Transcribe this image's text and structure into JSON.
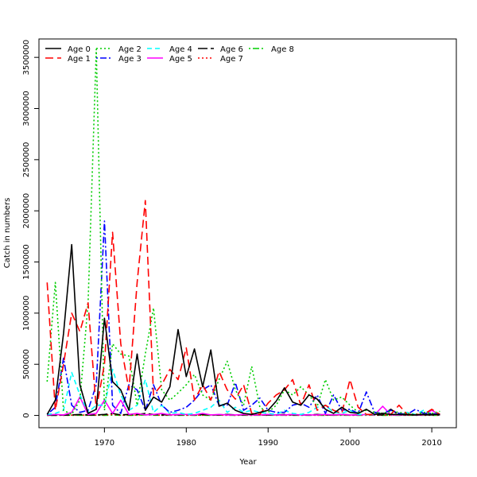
{
  "chart_data": {
    "type": "line",
    "title": "",
    "xlabel": "Year",
    "ylabel": "Catch in numbers",
    "xlim": [
      1962,
      2013
    ],
    "ylim": [
      -120000,
      3680000
    ],
    "x_ticks": [
      1970,
      1980,
      1990,
      2000,
      2010
    ],
    "y_ticks": [
      0,
      500000,
      1000000,
      1500000,
      2000000,
      2500000,
      3000000,
      3500000
    ],
    "grid": false,
    "legend_position": "top-left",
    "x": [
      1963,
      1964,
      1965,
      1966,
      1967,
      1968,
      1969,
      1970,
      1971,
      1972,
      1973,
      1974,
      1975,
      1976,
      1977,
      1978,
      1979,
      1980,
      1981,
      1982,
      1983,
      1984,
      1985,
      1986,
      1987,
      1988,
      1989,
      1990,
      1991,
      1992,
      1993,
      1994,
      1995,
      1996,
      1997,
      1998,
      1999,
      2000,
      2001,
      2002,
      2003,
      2004,
      2005,
      2006,
      2007,
      2008,
      2009,
      2010,
      2011
    ],
    "series": [
      {
        "name": "Age 0",
        "color": "#000000",
        "dash": "solid",
        "values": [
          10000,
          150000,
          800000,
          1670000,
          300000,
          20000,
          60000,
          950000,
          330000,
          250000,
          50000,
          600000,
          50000,
          180000,
          130000,
          280000,
          840000,
          380000,
          650000,
          280000,
          640000,
          90000,
          120000,
          50000,
          20000,
          10000,
          30000,
          50000,
          140000,
          270000,
          130000,
          100000,
          200000,
          160000,
          60000,
          20000,
          80000,
          30000,
          20000,
          60000,
          10000,
          20000,
          10000,
          10000,
          10000,
          5000,
          10000,
          10000,
          10000
        ]
      },
      {
        "name": "Age 1",
        "color": "#ff0000",
        "dash": "long",
        "values": [
          1300000,
          50000,
          500000,
          1000000,
          820000,
          1100000,
          60000,
          500000,
          1790000,
          700000,
          250000,
          1300000,
          2100000,
          200000,
          300000,
          450000,
          350000,
          660000,
          150000,
          300000,
          150000,
          430000,
          250000,
          160000,
          300000,
          20000,
          10000,
          120000,
          200000,
          250000,
          350000,
          100000,
          300000,
          50000,
          100000,
          50000,
          20000,
          350000,
          80000,
          10000,
          10000,
          20000,
          10000,
          100000,
          10000,
          10000,
          10000,
          60000,
          10000
        ]
      },
      {
        "name": "Age 2",
        "color": "#00cd00",
        "dash": "dotted",
        "values": [
          330000,
          1300000,
          50000,
          10000,
          150000,
          1100000,
          3580000,
          50000,
          700000,
          600000,
          580000,
          100000,
          600000,
          1050000,
          250000,
          150000,
          220000,
          300000,
          400000,
          200000,
          150000,
          350000,
          530000,
          250000,
          100000,
          480000,
          80000,
          30000,
          100000,
          250000,
          200000,
          280000,
          200000,
          90000,
          350000,
          150000,
          180000,
          100000,
          30000,
          50000,
          30000,
          20000,
          40000,
          30000,
          20000,
          10000,
          30000,
          20000,
          40000
        ]
      },
      {
        "name": "Age 3",
        "color": "#0000ff",
        "dash": "dotdash",
        "values": [
          10000,
          80000,
          560000,
          100000,
          30000,
          50000,
          300000,
          1900000,
          100000,
          20000,
          300000,
          250000,
          50000,
          300000,
          100000,
          30000,
          50000,
          80000,
          150000,
          250000,
          300000,
          100000,
          100000,
          320000,
          50000,
          100000,
          170000,
          50000,
          30000,
          30000,
          100000,
          120000,
          80000,
          200000,
          20000,
          200000,
          50000,
          60000,
          20000,
          230000,
          30000,
          20000,
          50000,
          20000,
          10000,
          60000,
          20000,
          20000,
          10000
        ]
      },
      {
        "name": "Age 4",
        "color": "#00ffff",
        "dash": "dashed",
        "values": [
          10000,
          20000,
          50000,
          420000,
          200000,
          30000,
          100000,
          100000,
          450000,
          200000,
          50000,
          100000,
          350000,
          30000,
          100000,
          20000,
          30000,
          10000,
          20000,
          50000,
          80000,
          150000,
          30000,
          80000,
          30000,
          50000,
          30000,
          20000,
          10000,
          50000,
          20000,
          10000,
          30000,
          80000,
          100000,
          30000,
          20000,
          50000,
          10000,
          10000,
          10000,
          20000,
          10000,
          10000,
          30000,
          10000,
          50000,
          10000,
          10000
        ]
      },
      {
        "name": "Age 5",
        "color": "#ff00ff",
        "dash": "solid",
        "values": [
          5000,
          10000,
          5000,
          30000,
          180000,
          10000,
          20000,
          150000,
          20000,
          150000,
          10000,
          20000,
          5000,
          10000,
          20000,
          5000,
          10000,
          10000,
          5000,
          20000,
          5000,
          10000,
          5000,
          5000,
          10000,
          5000,
          5000,
          10000,
          5000,
          5000,
          10000,
          5000,
          5000,
          5000,
          10000,
          5000,
          10000,
          5000,
          5000,
          10000,
          5000,
          90000,
          5000,
          5000,
          10000,
          5000,
          5000,
          50000,
          5000
        ]
      },
      {
        "name": "Age 6",
        "color": "#000000",
        "dash": "longdash",
        "values": [
          2000,
          2000,
          3000,
          5000,
          10000,
          5000,
          5000,
          10000,
          20000,
          5000,
          10000,
          10000,
          20000,
          10000,
          5000,
          10000,
          5000,
          10000,
          5000,
          10000,
          5000,
          5000,
          10000,
          5000,
          5000,
          10000,
          5000,
          5000,
          5000,
          10000,
          5000,
          5000,
          5000,
          10000,
          5000,
          5000,
          10000,
          5000,
          5000,
          10000,
          5000,
          5000,
          60000,
          5000,
          5000,
          5000,
          5000,
          5000,
          5000
        ]
      },
      {
        "name": "Age 7",
        "color": "#ff0000",
        "dash": "dotted",
        "values": [
          1000,
          2000,
          1000,
          3000,
          5000,
          2000,
          3000,
          5000,
          10000,
          2000,
          5000,
          3000,
          10000,
          5000,
          2000,
          3000,
          5000,
          2000,
          3000,
          2000,
          5000,
          2000,
          3000,
          2000,
          3000,
          2000,
          3000,
          2000,
          5000,
          2000,
          3000,
          2000,
          5000,
          2000,
          3000,
          2000,
          5000,
          2000,
          3000,
          5000,
          2000,
          3000,
          2000,
          3000,
          2000,
          5000,
          2000,
          3000,
          2000
        ]
      },
      {
        "name": "Age 8",
        "color": "#00cd00",
        "dash": "dotdash",
        "values": [
          1000,
          1000,
          2000,
          1000,
          2000,
          1000,
          2000,
          1000,
          3000,
          2000,
          1000,
          2000,
          5000,
          2000,
          1000,
          2000,
          1000,
          2000,
          1000,
          2000,
          1000,
          3000,
          2000,
          1000,
          2000,
          1000,
          2000,
          3000,
          1000,
          2000,
          1000,
          2000,
          1000,
          2000,
          1000,
          2000,
          1000,
          2000,
          1000,
          2000,
          3000,
          1000,
          2000,
          1000,
          2000,
          1000,
          2000,
          1000,
          2000
        ]
      }
    ]
  }
}
